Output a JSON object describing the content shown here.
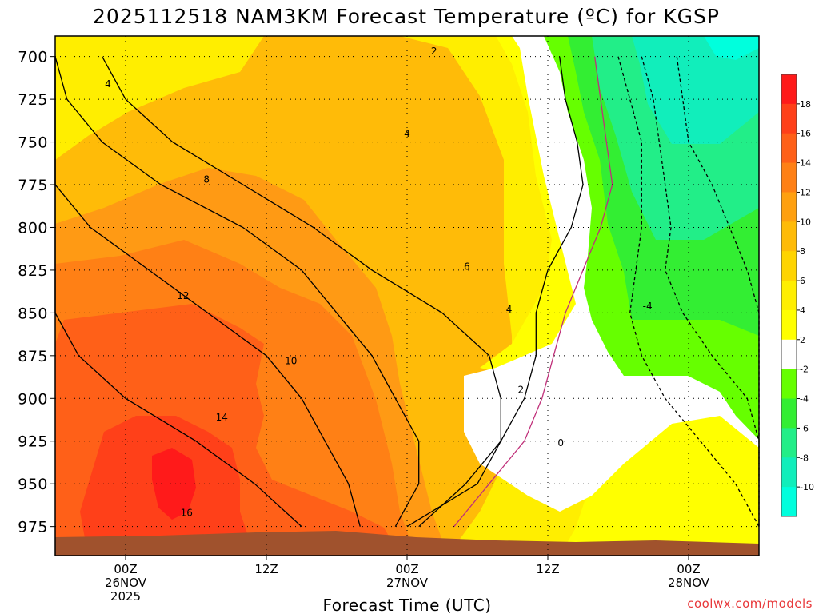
{
  "chart_data": {
    "type": "heatmap",
    "title": "2025112518 NAM3KM Forecast Temperature (ºC) for KGSP",
    "xlabel": "Forecast Time (UTC)",
    "ylabel": "",
    "credit": "coolwx.com/models",
    "x_ticks": [
      {
        "hours": 6,
        "line1": "00Z",
        "line2": "26NOV",
        "line3": "2025"
      },
      {
        "hours": 18,
        "line1": "12Z",
        "line2": "",
        "line3": ""
      },
      {
        "hours": 30,
        "line1": "00Z",
        "line2": "27NOV",
        "line3": ""
      },
      {
        "hours": 42,
        "line1": "12Z",
        "line2": "",
        "line3": ""
      },
      {
        "hours": 54,
        "line1": "00Z",
        "line2": "28NOV",
        "line3": ""
      }
    ],
    "xlim_hours": [
      0,
      60
    ],
    "y_ticks": [
      "700",
      "725",
      "750",
      "775",
      "800",
      "825",
      "850",
      "875",
      "900",
      "925",
      "950",
      "975"
    ],
    "ylim_hpa": [
      688,
      992
    ],
    "colorbar": {
      "labels": [
        "18",
        "16",
        "14",
        "12",
        "10",
        "8",
        "6",
        "4",
        "2",
        "-2",
        "-4",
        "-6",
        "-8",
        "-10"
      ],
      "colors": [
        "#ff1a1a",
        "#ff4019",
        "#ff6018",
        "#ff8015",
        "#ffa010",
        "#ffbb08",
        "#ffd400",
        "#ffee00",
        "#ffff00",
        "#ffffff",
        "#66ff00",
        "#33ee33",
        "#22ee88",
        "#11eebb",
        "#00ffdd"
      ]
    },
    "series": [
      {
        "name": "2",
        "pressure": [
          700,
          725,
          750,
          775,
          800,
          825,
          850,
          875,
          900,
          925,
          950,
          975
        ],
        "hours": [
          43,
          43.5,
          44.5,
          45,
          44,
          42,
          41,
          41,
          40,
          38,
          35,
          31
        ]
      },
      {
        "name": "0",
        "pressure": [
          700,
          725,
          750,
          775,
          800,
          825,
          850,
          875,
          900,
          925,
          950,
          975
        ],
        "hours": [
          46,
          46.5,
          47,
          47.5,
          46.5,
          45,
          43.5,
          42.5,
          41.5,
          40,
          37,
          34
        ]
      },
      {
        "name": "-2",
        "pressure": [
          700,
          725,
          750,
          775,
          800,
          825,
          850,
          875,
          900,
          925,
          950,
          975
        ],
        "hours": [
          48,
          49,
          50,
          50,
          50,
          49.5,
          49,
          50,
          52,
          55,
          58,
          61
        ]
      },
      {
        "name": "-4",
        "pressure": [
          700,
          725,
          750,
          775,
          800,
          825,
          850,
          875,
          900,
          925,
          950,
          975
        ],
        "hours": [
          50,
          51,
          51.5,
          52,
          52.5,
          52,
          53.5,
          56,
          59,
          61,
          61,
          61
        ]
      },
      {
        "name": "-6",
        "pressure": [
          700,
          725,
          750,
          775,
          800,
          825,
          850,
          875,
          900,
          925,
          950,
          975
        ],
        "hours": [
          53,
          53.5,
          54,
          56,
          57.5,
          59,
          60,
          61,
          61,
          61,
          61,
          61
        ]
      },
      {
        "name": "4",
        "pressure": [
          700,
          725,
          750,
          775,
          800,
          825,
          850,
          875,
          900,
          925,
          950,
          975
        ],
        "hours": [
          4,
          6,
          10,
          16,
          22,
          27,
          33,
          37,
          38,
          38,
          36,
          30
        ]
      },
      {
        "name": "8",
        "pressure": [
          700,
          725,
          750,
          775,
          800,
          825,
          850,
          875,
          900,
          925,
          950,
          975
        ],
        "hours": [
          -1,
          1,
          4,
          9,
          16,
          21,
          24,
          27,
          29,
          31,
          31,
          29
        ]
      },
      {
        "name": "12",
        "pressure": [
          700,
          725,
          750,
          775,
          800,
          825,
          850,
          875,
          900,
          925,
          950,
          975
        ],
        "hours": [
          -1,
          -1,
          -1,
          0,
          3,
          8,
          13,
          18,
          21,
          23,
          25,
          26
        ]
      },
      {
        "name": "16",
        "pressure": [
          700,
          725,
          750,
          775,
          800,
          825,
          850,
          875,
          900,
          925,
          950,
          975
        ],
        "hours": [
          -1,
          -1,
          -1,
          -1,
          -1,
          -1,
          0,
          2,
          6,
          12,
          17,
          21
        ]
      }
    ],
    "contour_labels": [
      {
        "text": "2",
        "hours": 32.3,
        "pressure": 697
      },
      {
        "text": "4",
        "hours": 4.5,
        "pressure": 716
      },
      {
        "text": "4",
        "hours": 30,
        "pressure": 745
      },
      {
        "text": "8",
        "hours": 12.9,
        "pressure": 772
      },
      {
        "text": "6",
        "hours": 35.1,
        "pressure": 823
      },
      {
        "text": "12",
        "hours": 10.9,
        "pressure": 840
      },
      {
        "text": "4",
        "hours": 38.7,
        "pressure": 848
      },
      {
        "text": "-4",
        "hours": 50.5,
        "pressure": 846
      },
      {
        "text": "10",
        "hours": 20.1,
        "pressure": 878
      },
      {
        "text": "2",
        "hours": 39.7,
        "pressure": 895
      },
      {
        "text": "14",
        "hours": 14.2,
        "pressure": 911
      },
      {
        "text": "0",
        "hours": 43.1,
        "pressure": 926
      },
      {
        "text": "16",
        "hours": 11.2,
        "pressure": 967
      }
    ]
  }
}
